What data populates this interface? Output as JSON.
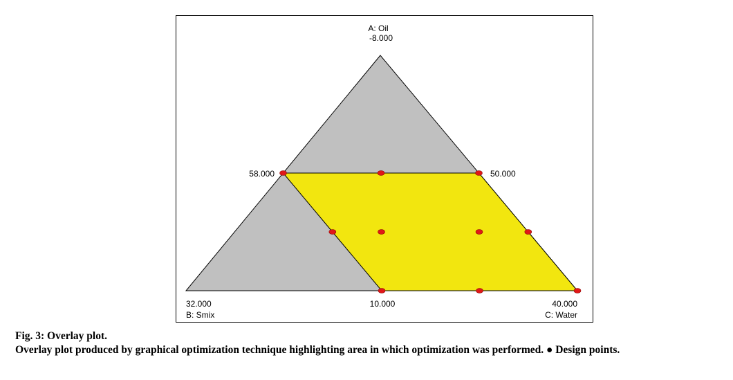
{
  "chart_data": {
    "type": "ternary-overlay",
    "components": [
      {
        "name": "A: Oil",
        "apex_value": "-8.000"
      },
      {
        "name": "B: Smix",
        "apex_value": "32.000"
      },
      {
        "name": "C: Water",
        "apex_value": "40.000"
      }
    ],
    "edge_labels": {
      "left_mid": "58.000",
      "right_mid": "50.000",
      "bottom_mid": "10.000"
    },
    "colors": {
      "outer_region": "#c0c0c0",
      "optimization_region": "#f2e60f",
      "design_points": "#e01818",
      "outline": "#000000"
    },
    "design_points": [
      {
        "A": 0.5,
        "B": 0.5,
        "C": 0.0
      },
      {
        "A": 0.5,
        "B": 0.0,
        "C": 0.5
      },
      {
        "A": 0.5,
        "B": 0.25,
        "C": 0.25
      },
      {
        "A": 0.0,
        "B": 0.5,
        "C": 0.5
      },
      {
        "A": 0.0,
        "B": 0.0,
        "C": 1.0
      },
      {
        "A": 0.0,
        "B": 0.25,
        "C": 0.75
      },
      {
        "A": 0.25,
        "B": 0.5,
        "C": 0.25
      },
      {
        "A": 0.25,
        "B": 0.0,
        "C": 0.75
      },
      {
        "A": 0.25,
        "B": 0.375,
        "C": 0.375
      },
      {
        "A": 0.25,
        "B": 0.125,
        "C": 0.625
      }
    ],
    "optimization_region": [
      {
        "A": 0.5,
        "B": 0.5,
        "C": 0.0
      },
      {
        "A": 0.5,
        "B": 0.0,
        "C": 0.5
      },
      {
        "A": 0.0,
        "B": 0.0,
        "C": 1.0
      },
      {
        "A": 0.0,
        "B": 0.5,
        "C": 0.5
      }
    ]
  },
  "caption": {
    "title": "Fig. 3: Overlay plot.",
    "body": "Overlay plot produced by graphical optimization technique highlighting area in which optimization was performed. ● Design points."
  }
}
